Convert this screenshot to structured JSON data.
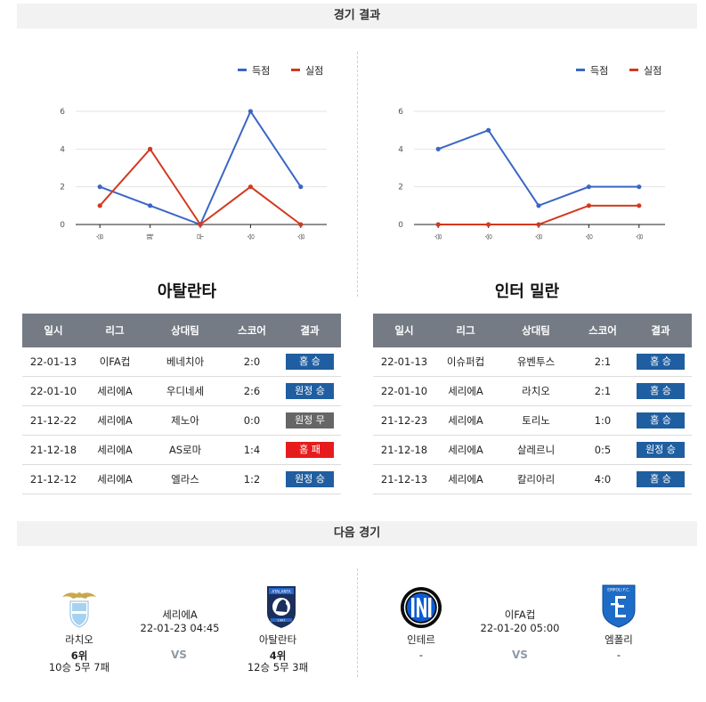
{
  "sections": {
    "results_title": "경기 결과",
    "next_title": "다음 경기"
  },
  "colors": {
    "scored": "#3a66c4",
    "conceded": "#d2391f",
    "header": "#747b84",
    "badge_blue": "#1f5ea0",
    "badge_gray": "#666666",
    "badge_red": "#e61c1c"
  },
  "legend": {
    "scored": "득점",
    "conceded": "실점"
  },
  "chart_data": [
    {
      "type": "line",
      "categories": [
        "승",
        "패",
        "무",
        "승",
        "승"
      ],
      "series": [
        {
          "name": "득점",
          "values": [
            2,
            1,
            0,
            6,
            2
          ]
        },
        {
          "name": "실점",
          "values": [
            1,
            4,
            0,
            2,
            0
          ]
        }
      ],
      "yticks": [
        "0",
        "2",
        "4",
        "6"
      ],
      "ylim": [
        0,
        6
      ],
      "legend_position": "top-right",
      "grid": true
    },
    {
      "type": "line",
      "categories": [
        "승",
        "승",
        "승",
        "승",
        "승"
      ],
      "series": [
        {
          "name": "득점",
          "values": [
            4,
            5,
            1,
            2,
            2
          ]
        },
        {
          "name": "실점",
          "values": [
            0,
            0,
            0,
            1,
            1
          ]
        }
      ],
      "yticks": [
        "0",
        "2",
        "4",
        "6"
      ],
      "ylim": [
        0,
        6
      ],
      "legend_position": "top-right",
      "grid": true
    }
  ],
  "teams": {
    "left_name": "아탈란타",
    "right_name": "인터 밀란"
  },
  "table_headers": [
    "일시",
    "리그",
    "상대팀",
    "스코어",
    "결과"
  ],
  "left_table": [
    {
      "date": "22-01-13",
      "league": "이FA컵",
      "opponent": "베네치아",
      "score": "2:0",
      "result": "홈 승",
      "color": "blue"
    },
    {
      "date": "22-01-10",
      "league": "세리에A",
      "opponent": "우디네세",
      "score": "2:6",
      "result": "원정 승",
      "color": "blue"
    },
    {
      "date": "21-12-22",
      "league": "세리에A",
      "opponent": "제노아",
      "score": "0:0",
      "result": "원정 무",
      "color": "gray"
    },
    {
      "date": "21-12-18",
      "league": "세리에A",
      "opponent": "AS로마",
      "score": "1:4",
      "result": "홈 패",
      "color": "red"
    },
    {
      "date": "21-12-12",
      "league": "세리에A",
      "opponent": "엘라스",
      "score": "1:2",
      "result": "원정 승",
      "color": "blue"
    }
  ],
  "right_table": [
    {
      "date": "22-01-13",
      "league": "이슈퍼컵",
      "opponent": "유벤투스",
      "score": "2:1",
      "result": "홈 승",
      "color": "blue"
    },
    {
      "date": "22-01-10",
      "league": "세리에A",
      "opponent": "라치오",
      "score": "2:1",
      "result": "홈 승",
      "color": "blue"
    },
    {
      "date": "21-12-23",
      "league": "세리에A",
      "opponent": "토리노",
      "score": "1:0",
      "result": "홈 승",
      "color": "blue"
    },
    {
      "date": "21-12-18",
      "league": "세리에A",
      "opponent": "살레르니",
      "score": "0:5",
      "result": "원정 승",
      "color": "blue"
    },
    {
      "date": "21-12-13",
      "league": "세리에A",
      "opponent": "칼리아리",
      "score": "4:0",
      "result": "홈 승",
      "color": "blue"
    }
  ],
  "next_left": {
    "home": {
      "name": "라치오",
      "rank": "6위",
      "record": "10승 5무 7패",
      "logo_icon": "lazio-eagle-logo-icon"
    },
    "league": "세리에A",
    "datetime": "22-01-23 04:45",
    "vs": "VS",
    "away": {
      "name": "아탈란타",
      "rank": "4위",
      "record": "12승 5무 3패",
      "logo_icon": "atalanta-logo-icon",
      "logo_text": "ATALANTA",
      "logo_year": "1907"
    }
  },
  "next_right": {
    "home": {
      "name": "인테르",
      "rank": "-",
      "logo_icon": "inter-logo-icon"
    },
    "league": "이FA컵",
    "datetime": "22-01-20 05:00",
    "vs": "VS",
    "away": {
      "name": "엠폴리",
      "rank": "-",
      "logo_icon": "empoli-logo-icon",
      "logo_text": "EMPOLI F.C."
    }
  }
}
